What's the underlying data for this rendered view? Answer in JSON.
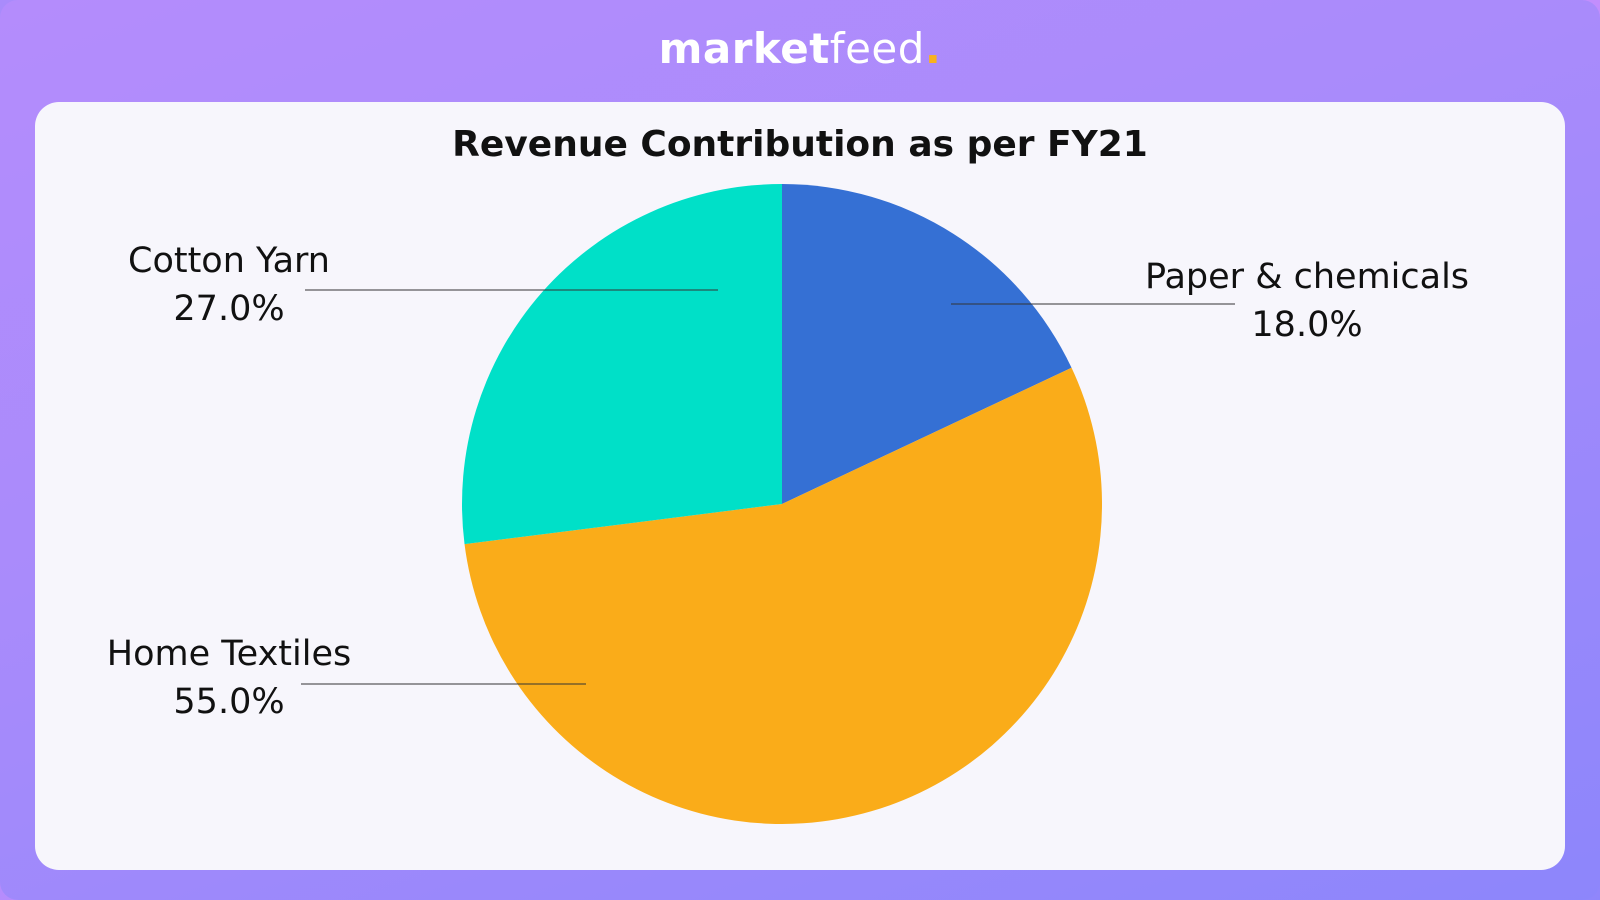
{
  "brand": {
    "name_bold": "market",
    "name_light": "feed",
    "dot": ".",
    "dot_color": "#f9b21d"
  },
  "chart_data": {
    "type": "pie",
    "title": "Revenue Contribution as per FY21",
    "slices": [
      {
        "label": "Paper & chemicals",
        "value": 18.0,
        "value_label": "18.0%",
        "color": "#3570d4"
      },
      {
        "label": "Home Textiles",
        "value": 55.0,
        "value_label": "55.0%",
        "color": "#faac19"
      },
      {
        "label": "Cotton Yarn",
        "value": 27.0,
        "value_label": "27.0%",
        "color": "#00e0c8"
      }
    ],
    "start_angle": "12 o'clock",
    "direction": "clockwise",
    "legend": "none"
  }
}
